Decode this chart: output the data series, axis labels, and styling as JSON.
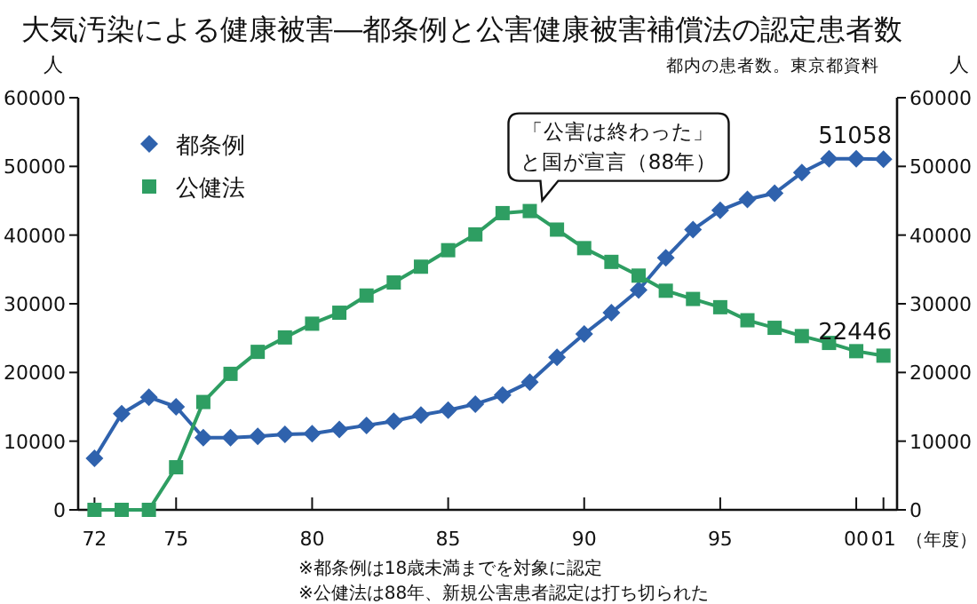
{
  "chart_data": {
    "type": "line",
    "title": "大気汚染による健康被害―都条例と公害健康被害補償法の認定患者数",
    "xlabel": "（年度）",
    "ylabel": "人",
    "y2label": "人",
    "x": [
      1972,
      1973,
      1974,
      1975,
      1976,
      1977,
      1978,
      1979,
      1980,
      1981,
      1982,
      1983,
      1984,
      1985,
      1986,
      1987,
      1988,
      1989,
      1990,
      1991,
      1992,
      1993,
      1994,
      1995,
      1996,
      1997,
      1998,
      1999,
      2000,
      2001
    ],
    "series": [
      {
        "name": "都条例",
        "color": "#2f62ad",
        "marker": "diamond",
        "values": [
          7500,
          14000,
          16400,
          15000,
          10500,
          10500,
          10700,
          11000,
          11100,
          11700,
          12300,
          12900,
          13800,
          14500,
          15400,
          16700,
          18600,
          22200,
          25600,
          28700,
          32000,
          36700,
          40800,
          43600,
          45200,
          46100,
          49100,
          51100,
          51100,
          51058
        ],
        "value_labels": [
          null,
          null,
          null,
          null,
          null,
          null,
          null,
          null,
          null,
          null,
          null,
          null,
          null,
          null,
          null,
          null,
          null,
          null,
          null,
          null,
          null,
          null,
          null,
          null,
          null,
          null,
          null,
          null,
          null,
          "51058"
        ]
      },
      {
        "name": "公健法",
        "color": "#2e9e62",
        "marker": "square",
        "values": [
          0,
          0,
          0,
          6200,
          15700,
          19800,
          23000,
          25100,
          27100,
          28700,
          31200,
          33100,
          35400,
          37800,
          40100,
          43200,
          43500,
          40800,
          38100,
          36100,
          34100,
          31900,
          30700,
          29500,
          27600,
          26500,
          25300,
          24300,
          23100,
          22446
        ],
        "value_labels": [
          null,
          null,
          null,
          null,
          null,
          null,
          null,
          null,
          null,
          null,
          null,
          null,
          null,
          null,
          null,
          null,
          null,
          null,
          null,
          null,
          null,
          null,
          null,
          null,
          null,
          null,
          null,
          null,
          null,
          "22446"
        ]
      }
    ],
    "xlim": [
      1971.4,
      2001.5
    ],
    "xticks": [
      {
        "value": 1972,
        "label": "72"
      },
      {
        "value": 1975,
        "label": "75"
      },
      {
        "value": 1980,
        "label": "80"
      },
      {
        "value": 1985,
        "label": "85"
      },
      {
        "value": 1990,
        "label": "90"
      },
      {
        "value": 1995,
        "label": "95"
      },
      {
        "value": 2000,
        "label": "00"
      },
      {
        "value": 2001,
        "label": "01"
      }
    ],
    "ylim": [
      0,
      60000
    ],
    "yticks": [
      0,
      10000,
      20000,
      30000,
      40000,
      50000,
      60000
    ],
    "y2lim": [
      0,
      60000
    ],
    "y2ticks": [
      0,
      10000,
      20000,
      30000,
      40000,
      50000,
      60000
    ],
    "legend": "top left",
    "grid": false,
    "line_style": "solid",
    "annotations": [
      {
        "text": "「公害は終わった」と国が宣言（88年）",
        "x": 1988,
        "y": 43500
      },
      "都内の患者数。東京都資料",
      "※都条例は18歳未満までを対象に認定",
      "※公健法は88年、新規公害患者認定は打ち切られた"
    ]
  }
}
